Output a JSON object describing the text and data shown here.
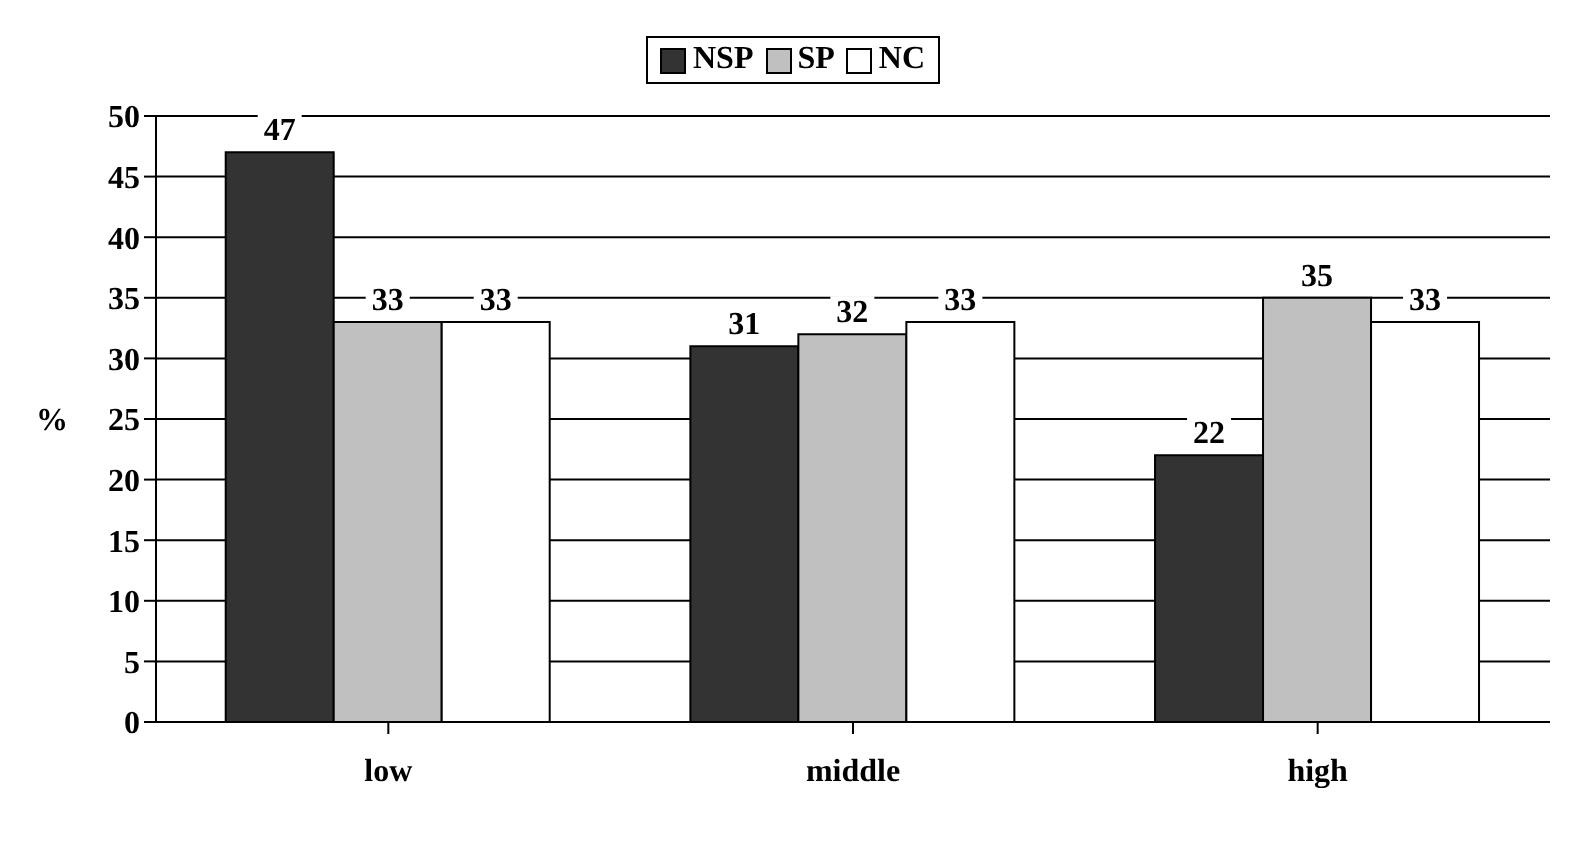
{
  "chart_data": {
    "type": "bar",
    "ylabel": "%",
    "categories": [
      "low",
      "middle",
      "high"
    ],
    "series": [
      {
        "name": "NSP",
        "color": "#333333",
        "values": [
          47,
          31,
          22
        ]
      },
      {
        "name": "SP",
        "color": "#c0c0c0",
        "values": [
          33,
          32,
          35
        ]
      },
      {
        "name": "NC",
        "color": "#ffffff",
        "values": [
          33,
          33,
          33
        ]
      }
    ],
    "ylim": [
      0,
      50
    ],
    "yticks": [
      0,
      5,
      10,
      15,
      20,
      25,
      30,
      35,
      40,
      45,
      50
    ],
    "grid": "y",
    "legend": "top",
    "data_labels": true
  }
}
